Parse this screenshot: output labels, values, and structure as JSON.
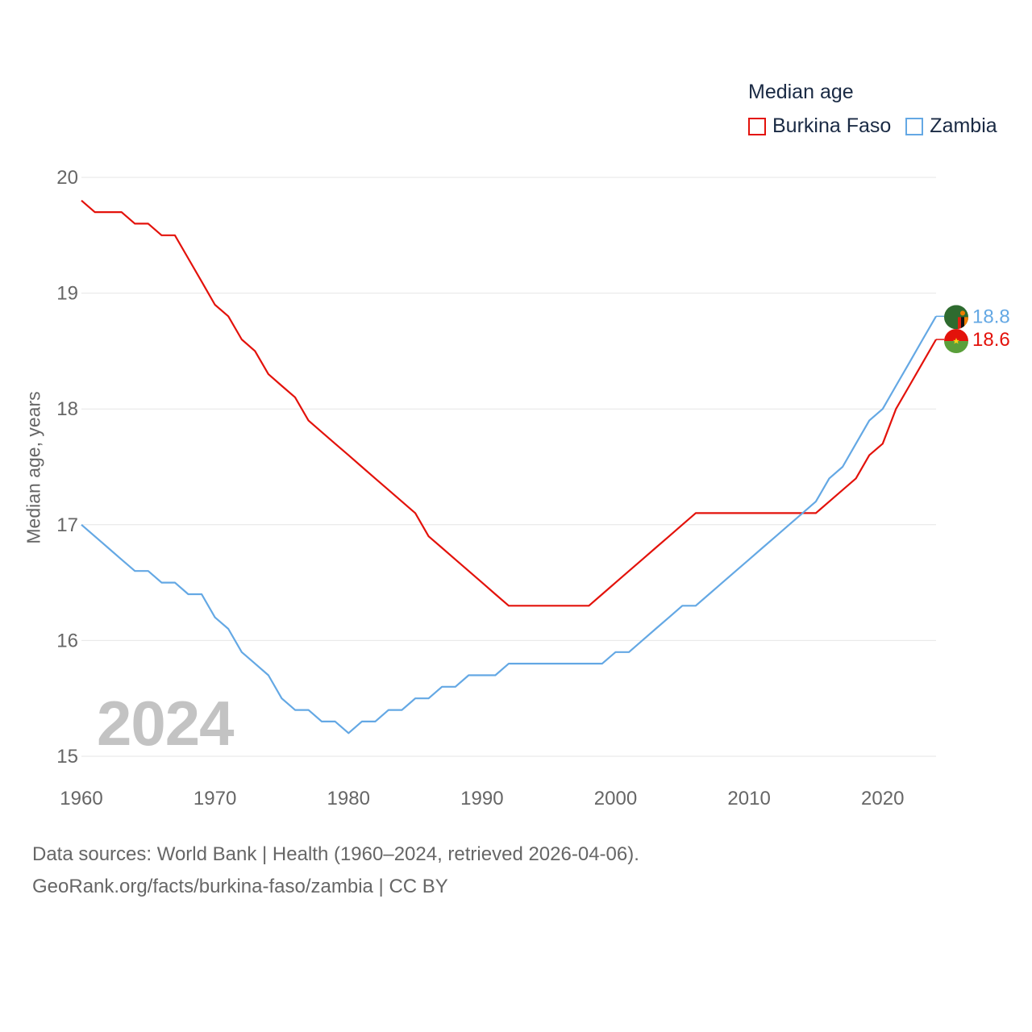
{
  "colors": {
    "burkina": "#e3120b",
    "zambia": "#64a8e4",
    "grid": "#e6e6e6",
    "tick": "#666666",
    "watermark": "#c3c3c3"
  },
  "legend": {
    "title": "Median age"
  },
  "watermark_year": "2024",
  "footer": {
    "line1": "Data sources: World Bank | Health (1960–2024, retrieved 2026-04-06).",
    "line2": "GeoRank.org/facts/burkina-faso/zambia | CC BY"
  },
  "chart_data": {
    "type": "line",
    "title": "Median age",
    "xlabel": "",
    "ylabel": "Median age, years",
    "xlim": [
      1960,
      2024
    ],
    "ylim": [
      15,
      20
    ],
    "x_ticks": [
      1960,
      1970,
      1980,
      1990,
      2000,
      2010,
      2020
    ],
    "y_ticks": [
      15,
      16,
      17,
      18,
      19,
      20
    ],
    "grid": true,
    "legend_position": "top-right",
    "x": [
      1960,
      1961,
      1962,
      1963,
      1964,
      1965,
      1966,
      1967,
      1968,
      1969,
      1970,
      1971,
      1972,
      1973,
      1974,
      1975,
      1976,
      1977,
      1978,
      1979,
      1980,
      1981,
      1982,
      1983,
      1984,
      1985,
      1986,
      1987,
      1988,
      1989,
      1990,
      1991,
      1992,
      1993,
      1994,
      1995,
      1996,
      1997,
      1998,
      1999,
      2000,
      2001,
      2002,
      2003,
      2004,
      2005,
      2006,
      2007,
      2008,
      2009,
      2010,
      2011,
      2012,
      2013,
      2014,
      2015,
      2016,
      2017,
      2018,
      2019,
      2020,
      2021,
      2022,
      2023,
      2024
    ],
    "series": [
      {
        "name": "Burkina Faso",
        "color": "#e3120b",
        "end_label": "18.6",
        "values": [
          19.8,
          19.7,
          19.7,
          19.7,
          19.6,
          19.6,
          19.5,
          19.5,
          19.3,
          19.1,
          18.9,
          18.8,
          18.6,
          18.5,
          18.3,
          18.2,
          18.1,
          17.9,
          17.8,
          17.7,
          17.6,
          17.5,
          17.4,
          17.3,
          17.2,
          17.1,
          16.9,
          16.8,
          16.7,
          16.6,
          16.5,
          16.4,
          16.3,
          16.3,
          16.3,
          16.3,
          16.3,
          16.3,
          16.3,
          16.4,
          16.5,
          16.6,
          16.7,
          16.8,
          16.9,
          17.0,
          17.1,
          17.1,
          17.1,
          17.1,
          17.1,
          17.1,
          17.1,
          17.1,
          17.1,
          17.1,
          17.2,
          17.3,
          17.4,
          17.6,
          17.7,
          18.0,
          18.2,
          18.4,
          18.6
        ]
      },
      {
        "name": "Zambia",
        "color": "#64a8e4",
        "end_label": "18.8",
        "values": [
          17.0,
          16.9,
          16.8,
          16.7,
          16.6,
          16.6,
          16.5,
          16.5,
          16.4,
          16.4,
          16.2,
          16.1,
          15.9,
          15.8,
          15.7,
          15.5,
          15.4,
          15.4,
          15.3,
          15.3,
          15.2,
          15.3,
          15.3,
          15.4,
          15.4,
          15.5,
          15.5,
          15.6,
          15.6,
          15.7,
          15.7,
          15.7,
          15.8,
          15.8,
          15.8,
          15.8,
          15.8,
          15.8,
          15.8,
          15.8,
          15.9,
          15.9,
          16.0,
          16.1,
          16.2,
          16.3,
          16.3,
          16.4,
          16.5,
          16.6,
          16.7,
          16.8,
          16.9,
          17.0,
          17.1,
          17.2,
          17.4,
          17.5,
          17.7,
          17.9,
          18.0,
          18.2,
          18.4,
          18.6,
          18.8
        ]
      }
    ]
  }
}
